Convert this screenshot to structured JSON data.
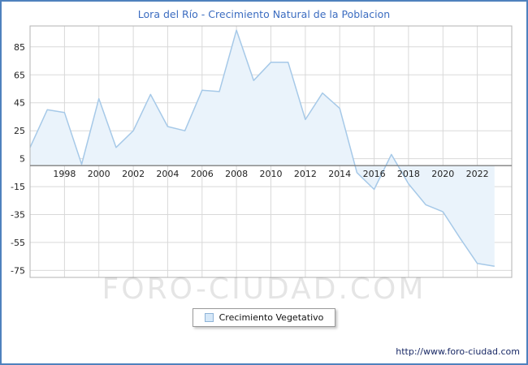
{
  "window": {
    "border_color": "#4f81bd",
    "background": "#ffffff"
  },
  "header": {
    "title": "Lora del Río - Crecimiento Natural de la Poblacion",
    "title_color": "#3b6cc0"
  },
  "chart_data": {
    "type": "area",
    "title": "Lora del Río - Crecimiento Natural de la Poblacion",
    "series_name": "Crecimiento Vegetativo",
    "x": [
      1996,
      1997,
      1998,
      1999,
      2000,
      2001,
      2002,
      2003,
      2004,
      2005,
      2006,
      2007,
      2008,
      2009,
      2010,
      2011,
      2012,
      2013,
      2014,
      2015,
      2016,
      2017,
      2018,
      2019,
      2020,
      2021,
      2022,
      2023
    ],
    "values": [
      13,
      40,
      38,
      1,
      48,
      13,
      25,
      51,
      28,
      25,
      54,
      53,
      97,
      61,
      74,
      74,
      33,
      52,
      41,
      -5,
      -17,
      8,
      -13,
      -28,
      -33,
      -52,
      -70,
      -72
    ],
    "x_tick_years": [
      1998,
      2000,
      2002,
      2004,
      2006,
      2008,
      2010,
      2012,
      2014,
      2016,
      2018,
      2020,
      2022
    ],
    "y_ticks": [
      85,
      65,
      45,
      25,
      5,
      -15,
      -35,
      -55,
      -75
    ],
    "xlim": [
      1996,
      2024
    ],
    "ylim": [
      -80,
      100
    ],
    "baseline": 0,
    "grid": true,
    "legend_position": "bottom",
    "fill_color": "#eaf3fb",
    "line_color": "#a6c9e8",
    "grid_color": "#d9d9d9",
    "plot_border_color": "#b3b3b3",
    "axis_color": "#7f7f7f",
    "tick_label_color": "#222222"
  },
  "legend": {
    "label": "Crecimiento Vegetativo",
    "swatch_fill": "#d6e8f8",
    "swatch_border": "#8fb4d8"
  },
  "watermark": {
    "text": "FORO-CIUDAD.COM"
  },
  "footer": {
    "url": "http://www.foro-ciudad.com"
  }
}
